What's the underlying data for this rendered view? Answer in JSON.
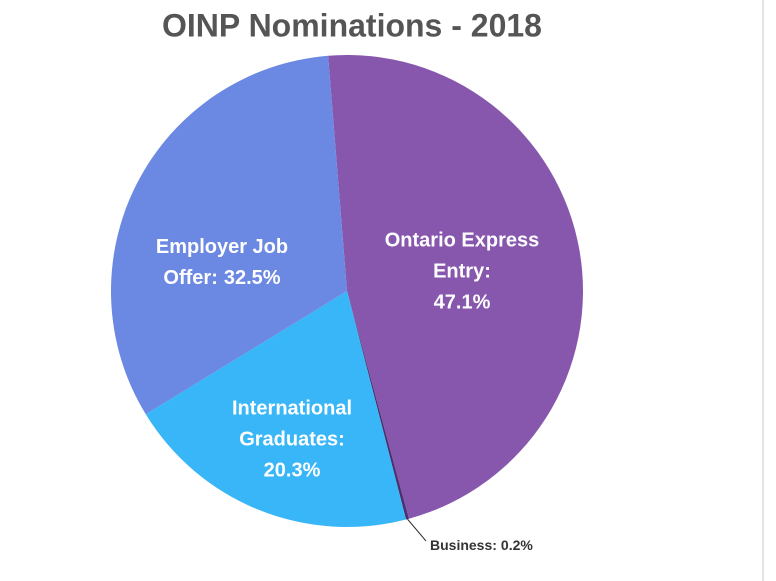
{
  "chart_data": {
    "type": "pie",
    "title": "OINP Nominations - 2018",
    "categories": [
      "Ontario Express Entry:",
      "Business:",
      "International Graduates:",
      "Employer Job Offer:"
    ],
    "values": [
      47.1,
      0.2,
      20.3,
      32.5
    ],
    "value_labels": [
      "47.1%",
      "0.2%",
      "20.3%",
      "32.5%"
    ],
    "colors": [
      "#8757ae",
      "#4b2f6e",
      "#38b6f7",
      "#6b88e2"
    ]
  }
}
